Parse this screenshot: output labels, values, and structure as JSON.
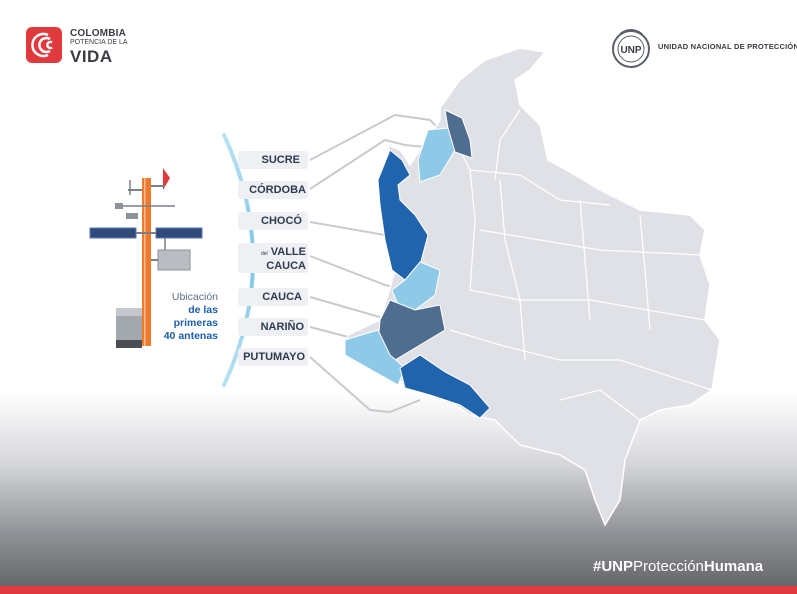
{
  "logo_left": {
    "line1": "COLOMBIA",
    "line2": "POTENCIA DE LA",
    "line3": "VIDA",
    "brand_color": "#e03a3e"
  },
  "logo_right": {
    "seal_text": "UNP",
    "name": "UNIDAD NACIONAL DE PROTECCIÓN"
  },
  "departments": [
    {
      "label": "SUCRE"
    },
    {
      "label": "CÓRDOBA"
    },
    {
      "label": "CHOCÓ"
    },
    {
      "label_prefix": "del",
      "label": "VALLE",
      "label2": "CAUCA"
    },
    {
      "label": "CAUCA"
    },
    {
      "label": "NARIÑO"
    },
    {
      "label": "PUTUMAYO"
    }
  ],
  "caption": {
    "line1": "Ubicación",
    "line2": "de las",
    "line3": "primeras",
    "line4": "40 antenas"
  },
  "hashtag": {
    "part1": "#UNP",
    "part2": "Protección",
    "part3": "Humana"
  },
  "colors": {
    "map_base": "#dfe1e6",
    "dark_blue": "#1f64ad",
    "light_blue": "#8ec9e8",
    "slate_blue": "#4f6d8f",
    "accent_arc": "#8fd0ea",
    "tower_orange": "#f07a2c"
  }
}
